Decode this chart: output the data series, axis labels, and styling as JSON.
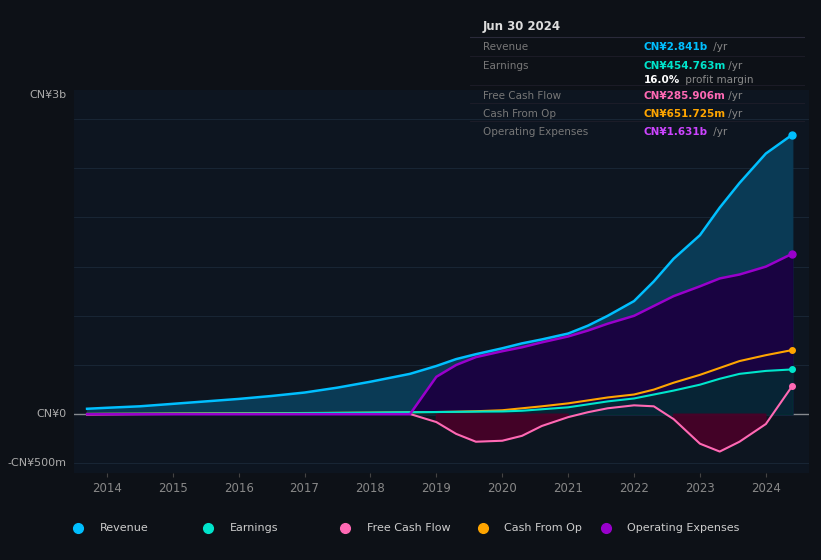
{
  "bg_color": "#0d1117",
  "plot_bg_color": "#0d1520",
  "grid_color": "#1e2d3d",
  "years": [
    2013.7,
    2014,
    2014.5,
    2015,
    2015.5,
    2016,
    2016.5,
    2017,
    2017.5,
    2018,
    2018.3,
    2018.6,
    2019,
    2019.3,
    2019.6,
    2020,
    2020.3,
    2020.6,
    2021,
    2021.3,
    2021.6,
    2022,
    2022.3,
    2022.6,
    2023,
    2023.3,
    2023.6,
    2024,
    2024.4
  ],
  "revenue": [
    55,
    65,
    80,
    105,
    130,
    155,
    185,
    220,
    270,
    330,
    370,
    410,
    490,
    560,
    610,
    670,
    720,
    760,
    820,
    900,
    1000,
    1150,
    1350,
    1580,
    1820,
    2100,
    2350,
    2650,
    2841
  ],
  "earnings": [
    2,
    3,
    4,
    5,
    6,
    7,
    8,
    10,
    13,
    16,
    18,
    20,
    22,
    24,
    26,
    28,
    35,
    50,
    70,
    100,
    130,
    160,
    200,
    240,
    300,
    360,
    410,
    440,
    455
  ],
  "free_cash_flow": [
    -5,
    -3,
    0,
    2,
    3,
    4,
    5,
    6,
    7,
    8,
    5,
    2,
    -80,
    -200,
    -280,
    -270,
    -220,
    -120,
    -30,
    20,
    60,
    90,
    80,
    -50,
    -300,
    -380,
    -280,
    -100,
    286
  ],
  "cash_from_op": [
    3,
    4,
    5,
    7,
    8,
    9,
    10,
    12,
    14,
    16,
    18,
    20,
    22,
    25,
    30,
    40,
    60,
    80,
    110,
    140,
    170,
    200,
    250,
    320,
    400,
    470,
    540,
    600,
    652
  ],
  "op_expenses": [
    0,
    0,
    0,
    0,
    0,
    0,
    0,
    0,
    0,
    0,
    0,
    0,
    380,
    500,
    580,
    640,
    680,
    730,
    790,
    850,
    920,
    1000,
    1100,
    1200,
    1300,
    1380,
    1420,
    1500,
    1631
  ],
  "revenue_color": "#00bfff",
  "earnings_color": "#00e5cc",
  "fcf_color": "#ff69b4",
  "cashop_color": "#ffa500",
  "opex_color": "#9900cc",
  "revenue_fill": "#0a3a55",
  "opex_fill": "#1a0040",
  "fcf_neg_fill": "#4a0028",
  "ylim_min": -600,
  "ylim_max": 3300,
  "xlim_min": 2013.5,
  "xlim_max": 2024.65,
  "xlabel_years": [
    2014,
    2015,
    2016,
    2017,
    2018,
    2019,
    2020,
    2021,
    2022,
    2023,
    2024
  ],
  "info_box_rows": [
    {
      "label": "Revenue",
      "value": "CN¥2.841b",
      "suffix": " /yr",
      "color": "#00bfff"
    },
    {
      "label": "Earnings",
      "value": "CN¥454.763m",
      "suffix": " /yr",
      "color": "#00e5cc"
    },
    {
      "label": "",
      "value": "16.0%",
      "suffix": " profit margin",
      "color": "#ffffff"
    },
    {
      "label": "Free Cash Flow",
      "value": "CN¥285.906m",
      "suffix": " /yr",
      "color": "#ff69b4"
    },
    {
      "label": "Cash From Op",
      "value": "CN¥651.725m",
      "suffix": " /yr",
      "color": "#ffa500"
    },
    {
      "label": "Operating Expenses",
      "value": "CN¥1.631b",
      "suffix": " /yr",
      "color": "#cc44ff"
    }
  ],
  "legend_items": [
    {
      "label": "Revenue",
      "color": "#00bfff"
    },
    {
      "label": "Earnings",
      "color": "#00e5cc"
    },
    {
      "label": "Free Cash Flow",
      "color": "#ff69b4"
    },
    {
      "label": "Cash From Op",
      "color": "#ffa500"
    },
    {
      "label": "Operating Expenses",
      "color": "#9900cc"
    }
  ]
}
